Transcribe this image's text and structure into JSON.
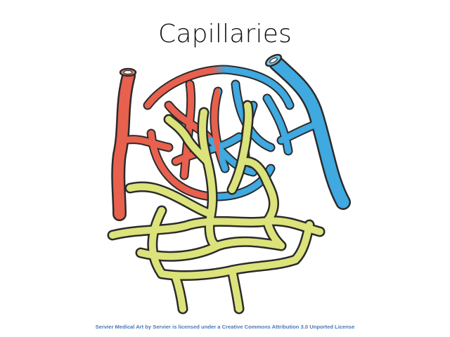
{
  "slide": {
    "title": "Capillaries",
    "credit": "Servier Medical Art by Servier is licensed under a Creative Commons Attribution 3.0 Unported License"
  },
  "illustration": {
    "subject": "capillary-bed-with-lymphatic-network",
    "colors": {
      "arterial": "#e8604e",
      "venous": "#3fa9e0",
      "lymphatic": "#dbe37a",
      "outline": "#2b2b2b"
    }
  }
}
